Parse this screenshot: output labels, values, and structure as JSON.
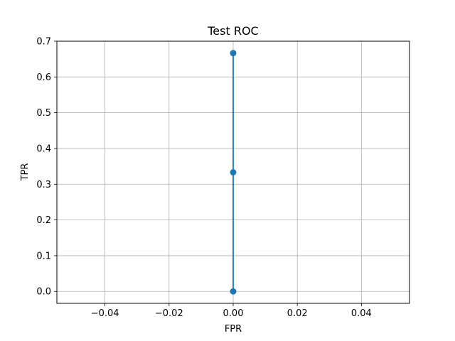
{
  "chart_data": {
    "type": "line",
    "title": "Test ROC",
    "xlabel": "FPR",
    "ylabel": "TPR",
    "xlim": [
      -0.055,
      0.055
    ],
    "ylim": [
      -0.0333,
      0.7
    ],
    "xticks": [
      -0.04,
      -0.02,
      0.0,
      0.02,
      0.04
    ],
    "xtick_labels": [
      "−0.04",
      "−0.02",
      "0.00",
      "0.02",
      "0.04"
    ],
    "yticks": [
      0.0,
      0.1,
      0.2,
      0.3,
      0.4,
      0.5,
      0.6,
      0.7
    ],
    "ytick_labels": [
      "0.0",
      "0.1",
      "0.2",
      "0.3",
      "0.4",
      "0.5",
      "0.6",
      "0.7"
    ],
    "grid": true,
    "series": [
      {
        "x": [
          0.0,
          0.0,
          0.0
        ],
        "y": [
          0.0,
          0.3333,
          0.6667
        ],
        "color": "#1f77b4",
        "marker": "circle"
      }
    ]
  }
}
